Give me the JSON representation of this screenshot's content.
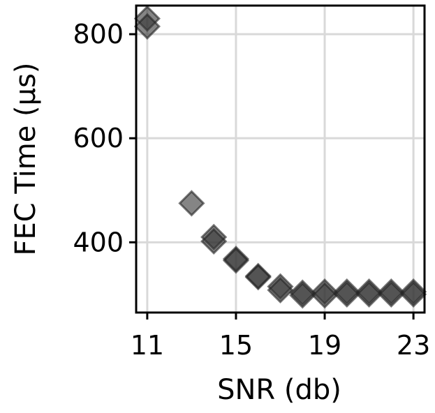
{
  "chart_data": {
    "type": "scatter",
    "title": "",
    "xlabel": "SNR (db)",
    "ylabel": "FEC Time (μs)",
    "xlim": [
      10.5,
      23.5
    ],
    "ylim": [
      265,
      855
    ],
    "xticks": [
      11,
      15,
      19,
      23
    ],
    "yticks": [
      400,
      600,
      800
    ],
    "xtick_labels": [
      "11",
      "15",
      "19",
      "23"
    ],
    "ytick_labels": [
      "400",
      "600",
      "800"
    ],
    "grid": true,
    "marker": "diamond",
    "colors": {
      "marker_fill": "#333333",
      "grid": "#d9d9d9",
      "frame": "#000000"
    },
    "series": [
      {
        "x": [
          11,
          11,
          13,
          14,
          14,
          15,
          15,
          16,
          16,
          17,
          17,
          18,
          18,
          19,
          19,
          20,
          20,
          21,
          21,
          22,
          22,
          23,
          23
        ],
        "y": [
          830,
          815,
          475,
          410,
          402,
          368,
          365,
          335,
          333,
          315,
          308,
          303,
          298,
          305,
          298,
          305,
          300,
          305,
          300,
          305,
          300,
          305,
          300
        ]
      }
    ]
  }
}
